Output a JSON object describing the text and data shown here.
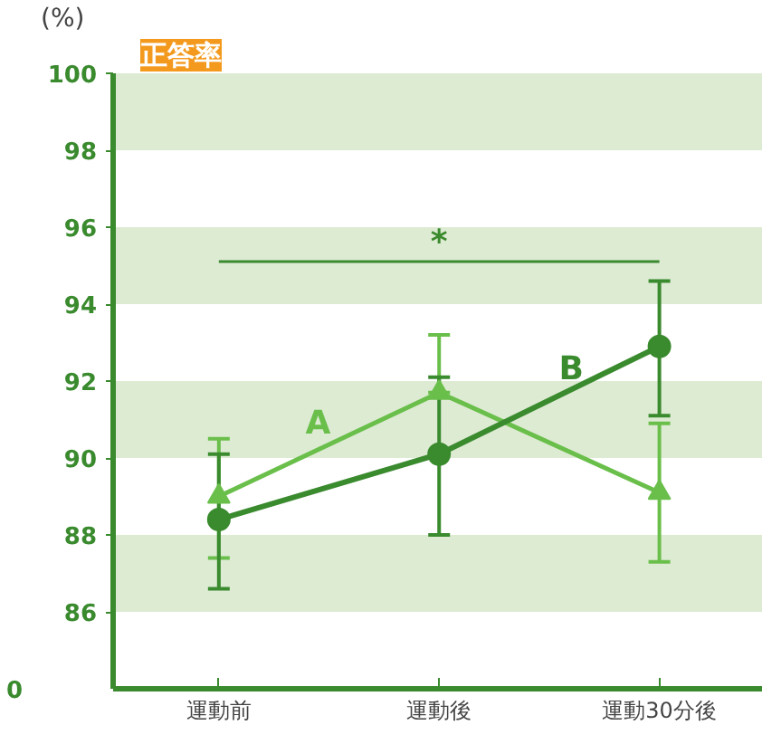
{
  "chart_data": {
    "type": "line",
    "title": "正答率",
    "ylabel": "(%)",
    "categories": [
      "運動前",
      "運動後",
      "運動30分後"
    ],
    "series": [
      {
        "name": "A",
        "color": "#6abf4b",
        "marker": "triangle",
        "values": [
          89.0,
          91.7,
          89.1
        ],
        "errors": [
          [
            87.4,
            90.5
          ],
          [
            91.7,
            93.2
          ],
          [
            87.3,
            90.9
          ]
        ]
      },
      {
        "name": "B",
        "color": "#3a8a2e",
        "marker": "circle",
        "values": [
          88.4,
          90.1,
          92.9
        ],
        "errors": [
          [
            86.6,
            90.1
          ],
          [
            88.0,
            92.1
          ],
          [
            91.1,
            94.6
          ]
        ]
      }
    ],
    "ylim": [
      84,
      100
    ],
    "yticks": [
      86,
      88,
      90,
      92,
      94,
      96,
      98,
      100
    ],
    "bands": [
      {
        "axis": "y",
        "from": 86,
        "to": 88,
        "color": "#ddebd3"
      },
      {
        "axis": "y",
        "from": 90,
        "to": 92,
        "color": "#ddebd3"
      },
      {
        "axis": "y",
        "from": 94,
        "to": 96,
        "color": "#ddebd3"
      },
      {
        "axis": "y",
        "from": 98,
        "to": 100,
        "color": "#ddebd3"
      }
    ],
    "annotations": [
      "*",
      "0"
    ],
    "grid": false,
    "legend": false
  }
}
